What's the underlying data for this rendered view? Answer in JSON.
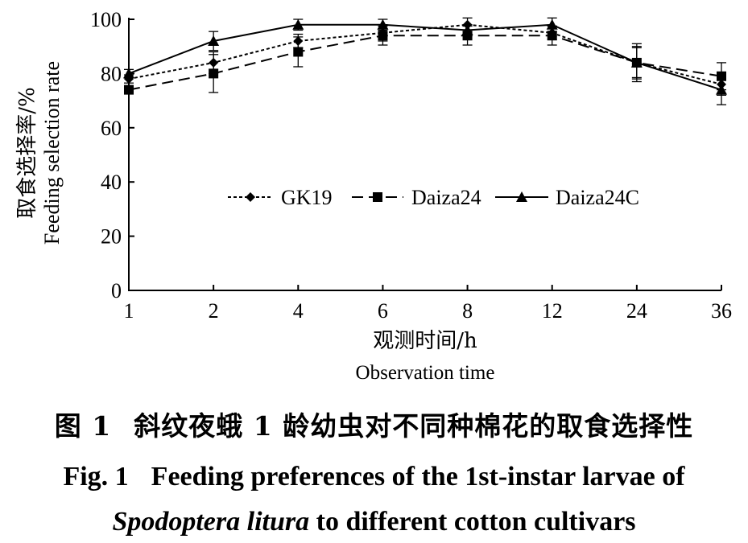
{
  "chart_data": {
    "type": "line",
    "categories": [
      "1",
      "2",
      "4",
      "6",
      "8",
      "12",
      "24",
      "36"
    ],
    "ylim": [
      0,
      100
    ],
    "yticks": [
      "0",
      "20",
      "40",
      "60",
      "80",
      "100"
    ],
    "ylabel_cn": "取食选择率/%",
    "ylabel_en": "Feeding selection rate",
    "xlabel_cn": "观测时间/h",
    "xlabel_en": "Observation time",
    "legend_position": "center",
    "series": [
      {
        "name": "GK19",
        "marker": "diamond",
        "dash": "4,3",
        "values": [
          78,
          84,
          92,
          95,
          98,
          95,
          84,
          76
        ],
        "errors": [
          1.5,
          4,
          2.5,
          3,
          2.5,
          2.5,
          6,
          4
        ]
      },
      {
        "name": "Daiza24",
        "marker": "square",
        "dash": "14,7",
        "values": [
          74,
          80,
          88,
          94,
          94,
          94,
          84,
          79
        ],
        "errors": [
          1.5,
          7,
          5.5,
          3.5,
          3.5,
          3.5,
          7,
          5
        ]
      },
      {
        "name": "Daiza24C",
        "marker": "triangle",
        "dash": "",
        "values": [
          80,
          92,
          98,
          98,
          96,
          98,
          84,
          74
        ],
        "errors": [
          1.5,
          3.5,
          2,
          2,
          2,
          2.5,
          5.5,
          5.5
        ]
      }
    ]
  },
  "caption": {
    "cn_label": "图 1",
    "cn_text": "斜纹夜蛾 1 龄幼虫对不同种棉花的取食选择性",
    "en_label": "Fig. 1",
    "en_text_line1": "Feeding preferences of the 1st-instar larvae of",
    "en_species": "Spodoptera litura",
    "en_text_line2": " to different cotton cultivars"
  }
}
